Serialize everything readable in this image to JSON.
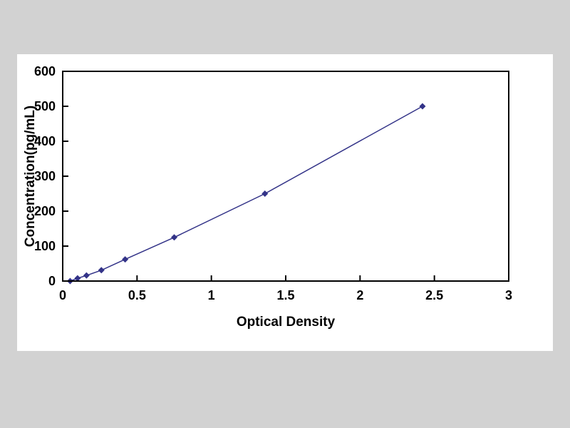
{
  "figure": {
    "description": "ELISA standard curve",
    "panel_bg": "#ffffff",
    "page_bg": "#d2d2d2",
    "axis_color": "#000000",
    "curve_color": "#333388"
  },
  "chart_data": {
    "type": "line",
    "title": "",
    "xlabel": "Optical Density",
    "ylabel": "Concentration(pg/mL)",
    "xlim": [
      0,
      3
    ],
    "ylim": [
      0,
      600
    ],
    "xticks": [
      0,
      0.5,
      1,
      1.5,
      2,
      2.5,
      3
    ],
    "xtick_labels": [
      "0",
      "0.5",
      "1",
      "1.5",
      "2",
      "2.5",
      "3"
    ],
    "yticks": [
      0,
      100,
      200,
      300,
      400,
      500,
      600
    ],
    "ytick_labels": [
      "0",
      "100",
      "200",
      "300",
      "400",
      "500",
      "600"
    ],
    "grid": false,
    "legend": false,
    "series": [
      {
        "name": "standard-curve",
        "marker": "diamond",
        "color": "#333388",
        "x": [
          0.05,
          0.1,
          0.16,
          0.26,
          0.42,
          0.75,
          1.36,
          2.42
        ],
        "y": [
          0,
          8,
          16,
          31,
          62,
          125,
          250,
          500
        ]
      }
    ]
  }
}
